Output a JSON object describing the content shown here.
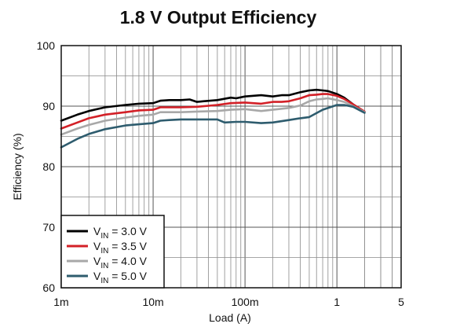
{
  "chart_data": {
    "type": "line",
    "title": "1.8 V Output Efficiency",
    "xlabel": "Load (A)",
    "ylabel": "Efficiency (%)",
    "x_scale": "log",
    "xlim": [
      0.001,
      5
    ],
    "ylim": [
      60,
      100
    ],
    "x_ticks": [
      {
        "value": 0.001,
        "label": "1m"
      },
      {
        "value": 0.01,
        "label": "10m"
      },
      {
        "value": 0.1,
        "label": "100m"
      },
      {
        "value": 1,
        "label": "1"
      },
      {
        "value": 5,
        "label": "5"
      }
    ],
    "y_ticks": [
      {
        "value": 60,
        "label": "60"
      },
      {
        "value": 70,
        "label": "70"
      },
      {
        "value": 80,
        "label": "80"
      },
      {
        "value": 90,
        "label": "90"
      },
      {
        "value": 100,
        "label": "100"
      }
    ],
    "grid": true,
    "legend_position": "bottom-left",
    "series": [
      {
        "name": "V_IN = 3.0 V",
        "label_main": "V",
        "label_sub": "IN",
        "label_rest": " = 3.0 V",
        "color": "#000000",
        "x": [
          0.001,
          0.0015,
          0.002,
          0.003,
          0.005,
          0.007,
          0.01,
          0.012,
          0.015,
          0.02,
          0.025,
          0.03,
          0.035,
          0.05,
          0.07,
          0.08,
          0.1,
          0.15,
          0.2,
          0.25,
          0.3,
          0.4,
          0.5,
          0.6,
          0.7,
          0.8,
          1.0,
          1.2,
          1.5,
          2.0
        ],
        "y": [
          87.6,
          88.6,
          89.2,
          89.8,
          90.2,
          90.4,
          90.5,
          90.9,
          91.0,
          91.0,
          91.1,
          90.7,
          90.8,
          91.0,
          91.4,
          91.3,
          91.6,
          91.8,
          91.6,
          91.8,
          91.8,
          92.3,
          92.6,
          92.7,
          92.6,
          92.5,
          92.0,
          91.4,
          90.3,
          89.0
        ]
      },
      {
        "name": "V_IN = 3.5 V",
        "label_main": "V",
        "label_sub": "IN",
        "label_rest": " = 3.5 V",
        "color": "#d32027",
        "x": [
          0.001,
          0.0015,
          0.002,
          0.003,
          0.005,
          0.007,
          0.01,
          0.012,
          0.015,
          0.02,
          0.03,
          0.05,
          0.07,
          0.1,
          0.15,
          0.2,
          0.25,
          0.3,
          0.4,
          0.5,
          0.6,
          0.7,
          0.8,
          1.0,
          1.2,
          1.5,
          2.0
        ],
        "y": [
          86.3,
          87.3,
          88.0,
          88.6,
          89.0,
          89.3,
          89.4,
          89.8,
          89.8,
          89.8,
          89.9,
          90.2,
          90.5,
          90.6,
          90.4,
          90.7,
          90.7,
          90.8,
          91.3,
          91.8,
          91.9,
          92.0,
          92.0,
          91.7,
          91.2,
          90.3,
          89.1
        ]
      },
      {
        "name": "V_IN = 4.0 V",
        "label_main": "V",
        "label_sub": "IN",
        "label_rest": " = 4.0 V",
        "color": "#a8a8a8",
        "x": [
          0.001,
          0.0015,
          0.002,
          0.003,
          0.005,
          0.007,
          0.01,
          0.012,
          0.015,
          0.02,
          0.03,
          0.05,
          0.07,
          0.1,
          0.15,
          0.2,
          0.3,
          0.4,
          0.5,
          0.6,
          0.7,
          0.8,
          1.0,
          1.2,
          1.5,
          2.0
        ],
        "y": [
          85.3,
          86.3,
          86.9,
          87.6,
          88.1,
          88.4,
          88.6,
          89.0,
          89.0,
          89.0,
          89.1,
          89.2,
          89.4,
          89.5,
          89.2,
          89.4,
          89.7,
          90.1,
          90.8,
          91.1,
          91.2,
          91.3,
          91.0,
          90.7,
          90.0,
          89.0
        ]
      },
      {
        "name": "V_IN = 5.0 V",
        "label_main": "V",
        "label_sub": "IN",
        "label_rest": " = 5.0 V",
        "color": "#2e5c6e",
        "x": [
          0.001,
          0.0015,
          0.002,
          0.003,
          0.005,
          0.007,
          0.01,
          0.012,
          0.015,
          0.02,
          0.03,
          0.05,
          0.06,
          0.08,
          0.1,
          0.15,
          0.2,
          0.3,
          0.4,
          0.5,
          0.7,
          1.0,
          1.2,
          1.5,
          2.0
        ],
        "y": [
          83.2,
          84.6,
          85.4,
          86.2,
          86.8,
          87.0,
          87.2,
          87.6,
          87.7,
          87.8,
          87.8,
          87.8,
          87.3,
          87.4,
          87.4,
          87.2,
          87.3,
          87.7,
          88.0,
          88.2,
          89.4,
          90.2,
          90.2,
          89.9,
          88.9
        ]
      }
    ]
  }
}
